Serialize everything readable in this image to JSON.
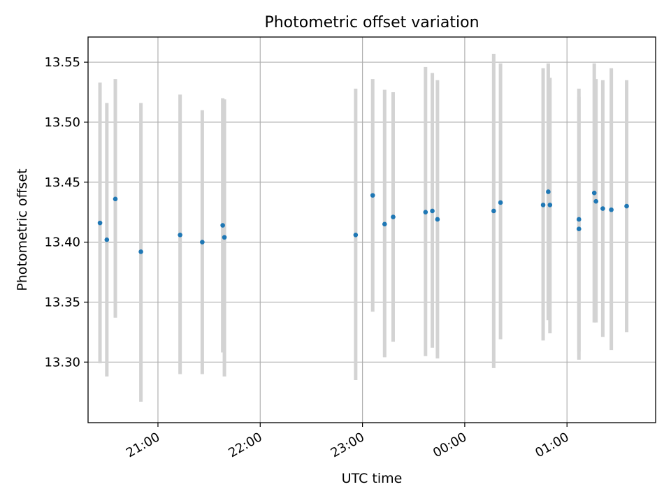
{
  "chart_data": {
    "type": "scatter",
    "title": "Photometric offset variation",
    "xlabel": "UTC time",
    "ylabel": "Photometric offset",
    "x_axis_type": "time",
    "x_ticks": [
      "21:00",
      "22:00",
      "23:00",
      "00:00",
      "01:00"
    ],
    "y_ticks": [
      "13.30",
      "13.35",
      "13.40",
      "13.45",
      "13.50",
      "13.55"
    ],
    "xlim": [
      "2023-01-01T20:19:00",
      "2023-01-02T01:52:00"
    ],
    "ylim": [
      13.2495,
      13.571
    ],
    "grid": true,
    "error_bar_color": "#d3d3d3",
    "point_color": "#1f77b4",
    "points": [
      {
        "x": "2023-01-01T20:26:00",
        "y": 13.416,
        "ylo": 13.299,
        "yhi": 13.533
      },
      {
        "x": "2023-01-01T20:30:00",
        "y": 13.402,
        "ylo": 13.288,
        "yhi": 13.516
      },
      {
        "x": "2023-01-01T20:35:00",
        "y": 13.436,
        "ylo": 13.337,
        "yhi": 13.536
      },
      {
        "x": "2023-01-01T20:50:00",
        "y": 13.392,
        "ylo": 13.267,
        "yhi": 13.516
      },
      {
        "x": "2023-01-01T21:13:00",
        "y": 13.406,
        "ylo": 13.29,
        "yhi": 13.523
      },
      {
        "x": "2023-01-01T21:26:00",
        "y": 13.4,
        "ylo": 13.29,
        "yhi": 13.51
      },
      {
        "x": "2023-01-01T21:38:00",
        "y": 13.414,
        "ylo": 13.308,
        "yhi": 13.52
      },
      {
        "x": "2023-01-01T21:39:00",
        "y": 13.404,
        "ylo": 13.288,
        "yhi": 13.519
      },
      {
        "x": "2023-01-01T22:56:00",
        "y": 13.406,
        "ylo": 13.285,
        "yhi": 13.528
      },
      {
        "x": "2023-01-01T23:06:00",
        "y": 13.439,
        "ylo": 13.342,
        "yhi": 13.536
      },
      {
        "x": "2023-01-01T23:13:00",
        "y": 13.415,
        "ylo": 13.304,
        "yhi": 13.527
      },
      {
        "x": "2023-01-01T23:18:00",
        "y": 13.421,
        "ylo": 13.317,
        "yhi": 13.525
      },
      {
        "x": "2023-01-01T23:37:00",
        "y": 13.425,
        "ylo": 13.305,
        "yhi": 13.546
      },
      {
        "x": "2023-01-01T23:41:00",
        "y": 13.426,
        "ylo": 13.312,
        "yhi": 13.541
      },
      {
        "x": "2023-01-01T23:44:00",
        "y": 13.419,
        "ylo": 13.303,
        "yhi": 13.535
      },
      {
        "x": "2023-01-02T00:17:00",
        "y": 13.426,
        "ylo": 13.295,
        "yhi": 13.557
      },
      {
        "x": "2023-01-02T00:21:00",
        "y": 13.433,
        "ylo": 13.319,
        "yhi": 13.549
      },
      {
        "x": "2023-01-02T00:46:00",
        "y": 13.431,
        "ylo": 13.318,
        "yhi": 13.545
      },
      {
        "x": "2023-01-02T00:49:00",
        "y": 13.442,
        "ylo": 13.335,
        "yhi": 13.549
      },
      {
        "x": "2023-01-02T00:50:00",
        "y": 13.431,
        "ylo": 13.324,
        "yhi": 13.537
      },
      {
        "x": "2023-01-02T01:07:00",
        "y": 13.419,
        "ylo": 13.309,
        "yhi": 13.528
      },
      {
        "x": "2023-01-02T01:07:00",
        "y": 13.411,
        "ylo": 13.302,
        "yhi": 13.521
      },
      {
        "x": "2023-01-02T01:16:00",
        "y": 13.441,
        "ylo": 13.333,
        "yhi": 13.549
      },
      {
        "x": "2023-01-02T01:17:00",
        "y": 13.434,
        "ylo": 13.333,
        "yhi": 13.536
      },
      {
        "x": "2023-01-02T01:21:00",
        "y": 13.428,
        "ylo": 13.321,
        "yhi": 13.535
      },
      {
        "x": "2023-01-02T01:26:00",
        "y": 13.427,
        "ylo": 13.31,
        "yhi": 13.545
      },
      {
        "x": "2023-01-02T01:35:00",
        "y": 13.43,
        "ylo": 13.325,
        "yhi": 13.535
      }
    ]
  }
}
